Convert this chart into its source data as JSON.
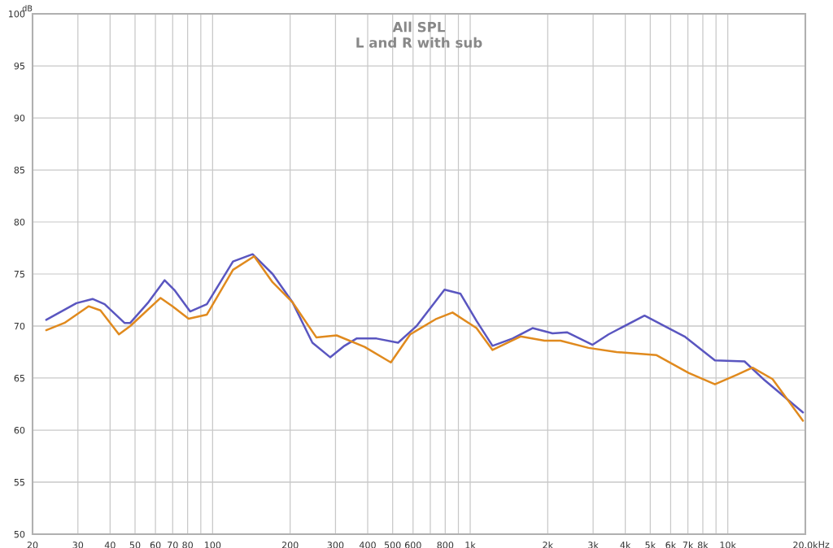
{
  "chart_data": {
    "type": "line",
    "title": "All SPL",
    "subtitle": "L and R with sub",
    "ylabel": "dB",
    "log": "x",
    "xlim": [
      20,
      20000
    ],
    "ylim": [
      50,
      100
    ],
    "xticks": [
      20,
      30,
      40,
      50,
      60,
      70,
      80,
      {
        "value": 90,
        "label": null
      },
      100,
      200,
      300,
      400,
      500,
      600,
      {
        "value": 700,
        "label": null
      },
      800,
      {
        "value": 900,
        "label": null
      },
      {
        "value": 1000,
        "label": "1k"
      },
      {
        "value": 2000,
        "label": "2k"
      },
      {
        "value": 3000,
        "label": "3k"
      },
      {
        "value": 4000,
        "label": "4k"
      },
      {
        "value": 5000,
        "label": "5k"
      },
      {
        "value": 6000,
        "label": "6k"
      },
      {
        "value": 7000,
        "label": "7k"
      },
      {
        "value": 8000,
        "label": "8k"
      },
      {
        "value": 9000,
        "label": null
      },
      {
        "value": 10000,
        "label": "10k"
      },
      {
        "value": 20000,
        "label": "20.0k"
      }
    ],
    "xlabel": "Hz",
    "yticks": [
      50,
      55,
      60,
      65,
      70,
      75,
      80,
      85,
      90,
      95,
      100
    ],
    "grid": true,
    "legend": false,
    "line_style": "solid",
    "series": [
      {
        "color": "#5a56c0",
        "x": [
          22.6,
          29.6,
          34.2,
          38.1,
          45.5,
          47.9,
          56.4,
          65.1,
          71.4,
          81.8,
          95,
          120,
          143,
          171,
          204,
          244,
          286,
          325,
          362,
          433,
          525,
          619,
          795,
          917,
          1058,
          1221,
          1460,
          1746,
          2088,
          2374,
          2986,
          3444,
          4752,
          5888,
          6792,
          8914,
          11614,
          13890,
          19576
        ],
        "values": [
          70.6,
          72.2,
          72.6,
          72.1,
          70.3,
          70.3,
          72.3,
          74.4,
          73.4,
          71.4,
          72.1,
          76.2,
          76.9,
          75.0,
          72.3,
          68.4,
          67.0,
          68.1,
          68.8,
          68.8,
          68.4,
          70.0,
          73.5,
          73.1,
          70.5,
          68.1,
          68.8,
          69.8,
          69.3,
          69.4,
          68.2,
          69.2,
          71.0,
          69.8,
          69.0,
          66.7,
          66.6,
          64.8,
          61.7
        ]
      },
      {
        "color": "#e08a1e",
        "x": [
          22.6,
          26.6,
          33.0,
          36.7,
          43.3,
          47.9,
          62.8,
          69.9,
          80.7,
          95,
          120,
          145,
          171,
          204,
          253,
          303,
          389,
          492,
          585,
          740,
          854,
          1058,
          1221,
          1568,
          1944,
          2242,
          2880,
          3698,
          5290,
          7042,
          8914,
          10816,
          12474,
          14918,
          19576
        ],
        "values": [
          69.6,
          70.3,
          71.9,
          71.5,
          69.2,
          70.0,
          72.7,
          71.9,
          70.7,
          71.1,
          75.4,
          76.7,
          74.2,
          72.3,
          68.9,
          69.1,
          68.0,
          66.5,
          69.2,
          70.7,
          71.3,
          69.8,
          67.7,
          69.0,
          68.6,
          68.6,
          67.9,
          67.5,
          67.2,
          65.5,
          64.4,
          65.3,
          66.0,
          64.9,
          60.9
        ]
      }
    ]
  }
}
